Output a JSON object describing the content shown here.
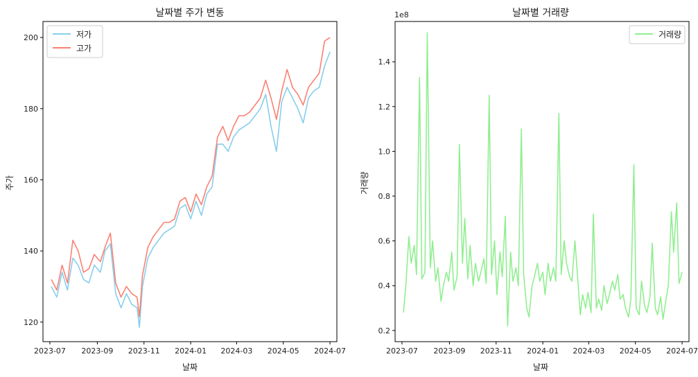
{
  "chart_data": [
    {
      "type": "line",
      "title": "날짜별 주가 변동",
      "xlabel": "날짜",
      "ylabel": "주가",
      "x_ticks": [
        "2023-07",
        "2023-09",
        "2023-11",
        "2024-01",
        "2024-03",
        "2024-05",
        "2024-07"
      ],
      "y_ticks": [
        "120",
        "140",
        "160",
        "180",
        "200"
      ],
      "xlim": [
        "2023-06-22",
        "2024-07-10"
      ],
      "ylim": [
        114.5,
        204.5
      ],
      "legend": "top-left",
      "legend_entries": [
        "저가",
        "고가"
      ],
      "series": [
        {
          "name": "저가",
          "color": "#87ceeb",
          "points": [
            [
              "2023-07-03",
              130
            ],
            [
              "2023-07-10",
              127
            ],
            [
              "2023-07-17",
              134
            ],
            [
              "2023-07-24",
              129
            ],
            [
              "2023-07-31",
              138
            ],
            [
              "2023-08-07",
              136
            ],
            [
              "2023-08-14",
              132
            ],
            [
              "2023-08-21",
              131
            ],
            [
              "2023-08-28",
              136
            ],
            [
              "2023-09-05",
              134
            ],
            [
              "2023-09-11",
              140
            ],
            [
              "2023-09-18",
              142
            ],
            [
              "2023-09-25",
              128
            ],
            [
              "2023-10-02",
              124
            ],
            [
              "2023-10-09",
              128
            ],
            [
              "2023-10-16",
              125
            ],
            [
              "2023-10-23",
              124
            ],
            [
              "2023-10-26",
              118.5
            ],
            [
              "2023-10-30",
              130
            ],
            [
              "2023-11-06",
              138
            ],
            [
              "2023-11-13",
              141
            ],
            [
              "2023-11-20",
              143
            ],
            [
              "2023-11-27",
              145
            ],
            [
              "2023-12-04",
              146
            ],
            [
              "2023-12-11",
              147
            ],
            [
              "2023-12-18",
              152
            ],
            [
              "2023-12-25",
              153
            ],
            [
              "2024-01-01",
              149
            ],
            [
              "2024-01-08",
              154
            ],
            [
              "2024-01-15",
              150
            ],
            [
              "2024-01-22",
              156
            ],
            [
              "2024-01-29",
              158
            ],
            [
              "2024-02-05",
              170
            ],
            [
              "2024-02-12",
              170
            ],
            [
              "2024-02-19",
              168
            ],
            [
              "2024-02-26",
              172
            ],
            [
              "2024-03-04",
              174
            ],
            [
              "2024-03-11",
              175
            ],
            [
              "2024-03-18",
              176
            ],
            [
              "2024-03-25",
              178
            ],
            [
              "2024-04-01",
              180
            ],
            [
              "2024-04-08",
              184
            ],
            [
              "2024-04-15",
              175
            ],
            [
              "2024-04-22",
              168
            ],
            [
              "2024-04-29",
              182
            ],
            [
              "2024-05-06",
              186
            ],
            [
              "2024-05-13",
              183
            ],
            [
              "2024-05-20",
              180
            ],
            [
              "2024-05-27",
              176
            ],
            [
              "2024-06-03",
              183
            ],
            [
              "2024-06-10",
              185
            ],
            [
              "2024-06-17",
              186
            ],
            [
              "2024-06-24",
              192
            ],
            [
              "2024-07-01",
              196
            ]
          ]
        },
        {
          "name": "고가",
          "color": "#fa8072",
          "points": [
            [
              "2023-07-03",
              132
            ],
            [
              "2023-07-10",
              129
            ],
            [
              "2023-07-17",
              136
            ],
            [
              "2023-07-24",
              131
            ],
            [
              "2023-07-31",
              143
            ],
            [
              "2023-08-07",
              140
            ],
            [
              "2023-08-14",
              134
            ],
            [
              "2023-08-21",
              135
            ],
            [
              "2023-08-28",
              139
            ],
            [
              "2023-09-05",
              137
            ],
            [
              "2023-09-11",
              141
            ],
            [
              "2023-09-18",
              145
            ],
            [
              "2023-09-25",
              131
            ],
            [
              "2023-10-02",
              127
            ],
            [
              "2023-10-09",
              130
            ],
            [
              "2023-10-16",
              128
            ],
            [
              "2023-10-23",
              127
            ],
            [
              "2023-10-26",
              121.5
            ],
            [
              "2023-10-30",
              133
            ],
            [
              "2023-11-06",
              141
            ],
            [
              "2023-11-13",
              144
            ],
            [
              "2023-11-20",
              146
            ],
            [
              "2023-11-27",
              148
            ],
            [
              "2023-12-04",
              148
            ],
            [
              "2023-12-11",
              149
            ],
            [
              "2023-12-18",
              154
            ],
            [
              "2023-12-25",
              155
            ],
            [
              "2024-01-01",
              151
            ],
            [
              "2024-01-08",
              156
            ],
            [
              "2024-01-15",
              153
            ],
            [
              "2024-01-22",
              158
            ],
            [
              "2024-01-29",
              161
            ],
            [
              "2024-02-05",
              172
            ],
            [
              "2024-02-12",
              175
            ],
            [
              "2024-02-19",
              171
            ],
            [
              "2024-02-26",
              175
            ],
            [
              "2024-03-04",
              178
            ],
            [
              "2024-03-11",
              178
            ],
            [
              "2024-03-18",
              179
            ],
            [
              "2024-03-25",
              181
            ],
            [
              "2024-04-01",
              183
            ],
            [
              "2024-04-08",
              188
            ],
            [
              "2024-04-15",
              183
            ],
            [
              "2024-04-22",
              177
            ],
            [
              "2024-04-29",
              185
            ],
            [
              "2024-05-06",
              191
            ],
            [
              "2024-05-13",
              186
            ],
            [
              "2024-05-20",
              184
            ],
            [
              "2024-05-27",
              181
            ],
            [
              "2024-06-03",
              186
            ],
            [
              "2024-06-10",
              188
            ],
            [
              "2024-06-17",
              190
            ],
            [
              "2024-06-24",
              199
            ],
            [
              "2024-07-01",
              200
            ]
          ]
        }
      ]
    },
    {
      "type": "line",
      "title": "날짜별 거래량",
      "xlabel": "날짜",
      "ylabel": "거래량",
      "axis_multiplier": "1e8",
      "x_ticks": [
        "2023-07",
        "2023-09",
        "2023-11",
        "2024-01",
        "2024-03",
        "2024-05",
        "2024-07"
      ],
      "y_ticks": [
        "0.2",
        "0.4",
        "0.6",
        "0.8",
        "1.0",
        "1.2",
        "1.4"
      ],
      "xlim": [
        "2023-06-22",
        "2024-07-10"
      ],
      "ylim": [
        0.15,
        1.58
      ],
      "legend": "top-right",
      "legend_entries": [
        "거래량"
      ],
      "series": [
        {
          "name": "거래량",
          "color": "#90ee90",
          "points": [
            [
              "2023-07-03",
              0.28
            ],
            [
              "2023-07-06",
              0.4
            ],
            [
              "2023-07-10",
              0.62
            ],
            [
              "2023-07-13",
              0.5
            ],
            [
              "2023-07-17",
              0.58
            ],
            [
              "2023-07-20",
              0.45
            ],
            [
              "2023-07-24",
              1.33
            ],
            [
              "2023-07-27",
              0.43
            ],
            [
              "2023-07-31",
              0.46
            ],
            [
              "2023-08-03",
              1.53
            ],
            [
              "2023-08-07",
              0.48
            ],
            [
              "2023-08-10",
              0.6
            ],
            [
              "2023-08-14",
              0.42
            ],
            [
              "2023-08-17",
              0.48
            ],
            [
              "2023-08-21",
              0.33
            ],
            [
              "2023-08-24",
              0.4
            ],
            [
              "2023-08-28",
              0.46
            ],
            [
              "2023-08-31",
              0.42
            ],
            [
              "2023-09-04",
              0.55
            ],
            [
              "2023-09-07",
              0.38
            ],
            [
              "2023-09-11",
              0.44
            ],
            [
              "2023-09-14",
              1.03
            ],
            [
              "2023-09-18",
              0.5
            ],
            [
              "2023-09-21",
              0.7
            ],
            [
              "2023-09-25",
              0.43
            ],
            [
              "2023-09-28",
              0.58
            ],
            [
              "2023-10-02",
              0.4
            ],
            [
              "2023-10-05",
              0.5
            ],
            [
              "2023-10-09",
              0.42
            ],
            [
              "2023-10-12",
              0.46
            ],
            [
              "2023-10-16",
              0.52
            ],
            [
              "2023-10-19",
              0.41
            ],
            [
              "2023-10-23",
              1.25
            ],
            [
              "2023-10-26",
              0.45
            ],
            [
              "2023-10-30",
              0.6
            ],
            [
              "2023-11-02",
              0.36
            ],
            [
              "2023-11-06",
              0.55
            ],
            [
              "2023-11-09",
              0.44
            ],
            [
              "2023-11-13",
              0.71
            ],
            [
              "2023-11-16",
              0.22
            ],
            [
              "2023-11-20",
              0.55
            ],
            [
              "2023-11-23",
              0.42
            ],
            [
              "2023-11-27",
              0.48
            ],
            [
              "2023-11-30",
              0.4
            ],
            [
              "2023-12-04",
              1.1
            ],
            [
              "2023-12-07",
              0.45
            ],
            [
              "2023-12-11",
              0.3
            ],
            [
              "2023-12-14",
              0.26
            ],
            [
              "2023-12-18",
              0.4
            ],
            [
              "2023-12-21",
              0.44
            ],
            [
              "2023-12-25",
              0.5
            ],
            [
              "2023-12-28",
              0.42
            ],
            [
              "2024-01-01",
              0.46
            ],
            [
              "2024-01-04",
              0.36
            ],
            [
              "2024-01-08",
              0.5
            ],
            [
              "2024-01-11",
              0.42
            ],
            [
              "2024-01-15",
              0.48
            ],
            [
              "2024-01-18",
              0.42
            ],
            [
              "2024-01-22",
              1.17
            ],
            [
              "2024-01-25",
              0.45
            ],
            [
              "2024-01-29",
              0.6
            ],
            [
              "2024-02-01",
              0.5
            ],
            [
              "2024-02-05",
              0.44
            ],
            [
              "2024-02-08",
              0.42
            ],
            [
              "2024-02-12",
              0.6
            ],
            [
              "2024-02-15",
              0.46
            ],
            [
              "2024-02-19",
              0.27
            ],
            [
              "2024-02-22",
              0.36
            ],
            [
              "2024-02-26",
              0.3
            ],
            [
              "2024-02-29",
              0.37
            ],
            [
              "2024-03-04",
              0.28
            ],
            [
              "2024-03-07",
              0.72
            ],
            [
              "2024-03-11",
              0.3
            ],
            [
              "2024-03-14",
              0.34
            ],
            [
              "2024-03-18",
              0.29
            ],
            [
              "2024-03-21",
              0.4
            ],
            [
              "2024-03-25",
              0.32
            ],
            [
              "2024-03-28",
              0.36
            ],
            [
              "2024-04-01",
              0.42
            ],
            [
              "2024-04-04",
              0.38
            ],
            [
              "2024-04-08",
              0.45
            ],
            [
              "2024-04-11",
              0.34
            ],
            [
              "2024-04-15",
              0.36
            ],
            [
              "2024-04-18",
              0.3
            ],
            [
              "2024-04-22",
              0.26
            ],
            [
              "2024-04-25",
              0.34
            ],
            [
              "2024-04-29",
              0.94
            ],
            [
              "2024-05-02",
              0.3
            ],
            [
              "2024-05-06",
              0.27
            ],
            [
              "2024-05-09",
              0.42
            ],
            [
              "2024-05-13",
              0.31
            ],
            [
              "2024-05-16",
              0.28
            ],
            [
              "2024-05-20",
              0.35
            ],
            [
              "2024-05-23",
              0.59
            ],
            [
              "2024-05-27",
              0.3
            ],
            [
              "2024-05-30",
              0.27
            ],
            [
              "2024-06-03",
              0.35
            ],
            [
              "2024-06-06",
              0.25
            ],
            [
              "2024-06-10",
              0.34
            ],
            [
              "2024-06-13",
              0.4
            ],
            [
              "2024-06-17",
              0.73
            ],
            [
              "2024-06-20",
              0.55
            ],
            [
              "2024-06-24",
              0.77
            ],
            [
              "2024-06-27",
              0.41
            ],
            [
              "2024-07-01",
              0.46
            ]
          ]
        }
      ]
    }
  ]
}
